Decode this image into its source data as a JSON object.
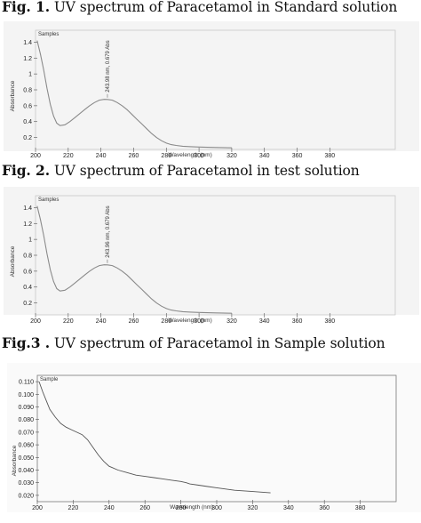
{
  "figures": [
    {
      "label": "Fig. 1.",
      "caption": " UV spectrum of Paracetamol in Standard solution"
    },
    {
      "label": "Fig. 2.",
      "caption": " UV spectrum of Paracetamol in test solution"
    },
    {
      "label": "Fig.3 .",
      "caption": " UV spectrum of Paracetamol in Sample solution"
    }
  ],
  "chart_data": [
    {
      "type": "line",
      "title": "Fig. 1. UV spectrum of Paracetamol in Standard solution",
      "box_label": "Samples",
      "xlabel": "Wavelength (nm)",
      "ylabel": "Absorbance",
      "xlim": [
        200,
        420
      ],
      "ylim": [
        0.05,
        1.55
      ],
      "x_ticks": [
        200,
        220,
        240,
        260,
        280,
        300,
        320,
        340,
        360,
        380
      ],
      "y_ticks": [
        0.2,
        0.4,
        0.6,
        0.8,
        1.0,
        1.2,
        1.4
      ],
      "y_tick_labels": [
        "0.2",
        "0.4",
        "0.6",
        "0.8",
        "1",
        "1.2",
        "1.4"
      ],
      "peak_annotation": {
        "x": 243.98,
        "y": 0.679,
        "text": "243.98 nm, 0.679 Abs"
      },
      "series": [
        {
          "color": "#8a8a8a",
          "x": [
            201,
            203,
            205,
            207,
            209,
            211,
            213,
            215,
            218,
            221,
            224,
            227,
            230,
            233,
            236,
            239,
            242,
            244,
            247,
            250,
            253,
            256,
            259,
            262,
            265,
            268,
            271,
            274,
            277,
            280,
            283,
            286,
            290,
            295,
            300,
            310,
            320
          ],
          "y": [
            1.42,
            1.25,
            1.05,
            0.82,
            0.62,
            0.47,
            0.38,
            0.35,
            0.36,
            0.4,
            0.45,
            0.5,
            0.55,
            0.6,
            0.64,
            0.67,
            0.68,
            0.679,
            0.67,
            0.64,
            0.6,
            0.55,
            0.49,
            0.43,
            0.37,
            0.31,
            0.25,
            0.2,
            0.16,
            0.13,
            0.11,
            0.1,
            0.09,
            0.085,
            0.08,
            0.075,
            0.07
          ]
        }
      ]
    },
    {
      "type": "line",
      "title": "Fig. 2. UV spectrum of Paracetamol in test solution",
      "box_label": "Samples",
      "xlabel": "Wavelength (nm)",
      "ylabel": "Absorbance",
      "xlim": [
        200,
        420
      ],
      "ylim": [
        0.05,
        1.55
      ],
      "x_ticks": [
        200,
        220,
        240,
        260,
        280,
        300,
        320,
        340,
        360,
        380
      ],
      "y_ticks": [
        0.2,
        0.4,
        0.6,
        0.8,
        1.0,
        1.2,
        1.4
      ],
      "y_tick_labels": [
        "0.2",
        "0.4",
        "0.6",
        "0.8",
        "1",
        "1.2",
        "1.4"
      ],
      "peak_annotation": {
        "x": 243.96,
        "y": 0.679,
        "text": "243.96 nm, 0.679 Abs"
      },
      "series": [
        {
          "color": "#8a8a8a",
          "x": [
            201,
            203,
            205,
            207,
            209,
            211,
            213,
            215,
            218,
            221,
            224,
            227,
            230,
            233,
            236,
            239,
            242,
            244,
            247,
            250,
            253,
            256,
            259,
            262,
            265,
            268,
            271,
            274,
            277,
            280,
            283,
            286,
            290,
            295,
            300,
            310,
            320
          ],
          "y": [
            1.42,
            1.25,
            1.05,
            0.82,
            0.62,
            0.47,
            0.38,
            0.35,
            0.36,
            0.4,
            0.45,
            0.5,
            0.55,
            0.6,
            0.64,
            0.67,
            0.68,
            0.679,
            0.67,
            0.64,
            0.6,
            0.55,
            0.49,
            0.43,
            0.37,
            0.31,
            0.25,
            0.2,
            0.16,
            0.13,
            0.11,
            0.1,
            0.09,
            0.085,
            0.08,
            0.075,
            0.07
          ]
        }
      ]
    },
    {
      "type": "line",
      "title": "Fig.3 . UV spectrum of Paracetamol in Sample solution",
      "box_label": "Sample",
      "xlabel": "Wavelength (nm)",
      "ylabel": "Absorbance",
      "xlim": [
        200,
        400
      ],
      "ylim": [
        0.015,
        0.115
      ],
      "x_ticks": [
        200,
        220,
        240,
        260,
        280,
        300,
        320,
        340,
        360,
        380
      ],
      "y_ticks": [
        0.02,
        0.03,
        0.04,
        0.05,
        0.06,
        0.07,
        0.08,
        0.09,
        0.1,
        0.11
      ],
      "y_tick_labels": [
        "0.020",
        "0.030",
        "0.040",
        "0.050",
        "0.060",
        "0.070",
        "0.080",
        "0.090",
        "0.100",
        "0.110"
      ],
      "series": [
        {
          "color": "#555555",
          "x": [
            201,
            203,
            205,
            207,
            210,
            213,
            216,
            219,
            222,
            225,
            228,
            231,
            234,
            237,
            240,
            245,
            250,
            255,
            260,
            265,
            270,
            275,
            280,
            283,
            285,
            290,
            295,
            300,
            305,
            310,
            320,
            330
          ],
          "y": [
            0.11,
            0.102,
            0.095,
            0.088,
            0.082,
            0.077,
            0.074,
            0.072,
            0.07,
            0.068,
            0.064,
            0.058,
            0.052,
            0.047,
            0.043,
            0.04,
            0.038,
            0.036,
            0.035,
            0.034,
            0.033,
            0.032,
            0.031,
            0.03,
            0.029,
            0.028,
            0.027,
            0.026,
            0.025,
            0.024,
            0.023,
            0.022
          ]
        }
      ]
    }
  ]
}
